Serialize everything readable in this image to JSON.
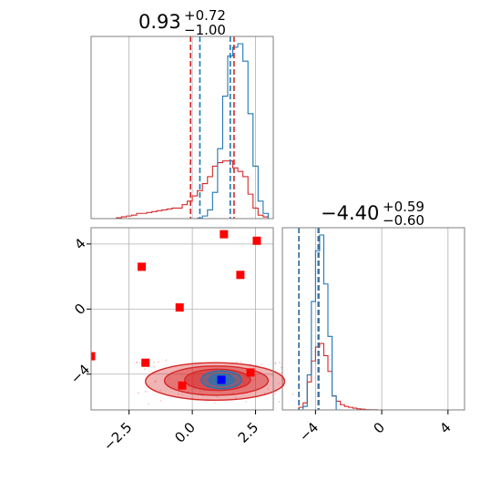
{
  "chart_data": {
    "type": "corner",
    "parameters": 2,
    "colors": {
      "series_a": "#1f77b4",
      "series_b": "#d62728",
      "truth_marker": "#0000ff",
      "sample_marker": "#ff0000"
    },
    "grid": true,
    "panels": [
      {
        "kind": "histogram",
        "position": "top-left",
        "title": {
          "value": "0.93",
          "upper": "+0.72",
          "lower": "−1.00"
        },
        "xlim": [
          -4.0,
          3.2
        ],
        "quantiles": {
          "series_a": [
            0.3,
            1.5
          ],
          "series_b": [
            -0.07,
            1.65
          ]
        },
        "bin_width": 0.2,
        "series_a_counts": [
          0,
          0,
          0,
          0,
          0,
          0,
          0,
          0,
          0,
          0,
          0,
          0,
          0,
          0,
          0,
          0,
          0,
          0,
          0,
          0,
          0,
          0.003,
          0.015,
          0.05,
          0.15,
          0.4,
          0.7,
          0.93,
          0.98,
          1.0,
          0.9,
          0.6,
          0.3,
          0.1,
          0.03,
          0
        ],
        "series_b_counts": [
          0,
          0,
          0,
          0,
          0,
          0.005,
          0.01,
          0.015,
          0.02,
          0.03,
          0.03,
          0.035,
          0.04,
          0.045,
          0.05,
          0.055,
          0.06,
          0.06,
          0.08,
          0.1,
          0.13,
          0.16,
          0.2,
          0.24,
          0.3,
          0.32,
          0.33,
          0.33,
          0.29,
          0.27,
          0.24,
          0.14,
          0.06,
          0.02,
          0.01,
          0
        ]
      },
      {
        "kind": "histogram",
        "position": "bottom-right",
        "title": {
          "value": "−4.40",
          "upper": "+0.59",
          "lower": "−0.60"
        },
        "xlim": [
          -6.0,
          5.0
        ],
        "ticks": [
          "−4",
          "0",
          "4"
        ],
        "tick_values": [
          -4,
          0,
          4
        ],
        "quantiles": {
          "series_a": [
            -5.0,
            -3.84
          ],
          "series_b": [
            -5.0,
            -3.8
          ]
        },
        "bin_width": 0.25,
        "series_a_counts": [
          0,
          0,
          0,
          0,
          0,
          0.02,
          0.2,
          0.62,
          0.91,
          1.0,
          0.72,
          0.42,
          0.08,
          0,
          0,
          0,
          0,
          0,
          0,
          0,
          0,
          0,
          0,
          0,
          0,
          0,
          0,
          0,
          0,
          0,
          0,
          0,
          0,
          0,
          0,
          0,
          0,
          0,
          0,
          0,
          0,
          0,
          0,
          0
        ],
        "series_b_counts": [
          0,
          0,
          0,
          0,
          0.015,
          0.04,
          0.16,
          0.28,
          0.36,
          0.38,
          0.31,
          0.22,
          0.08,
          0.05,
          0.03,
          0.02,
          0.015,
          0.01,
          0.006,
          0.004,
          0.002,
          0.001,
          0.001,
          0,
          0,
          0,
          0,
          0,
          0,
          0,
          0,
          0,
          0,
          0,
          0,
          0,
          0,
          0,
          0,
          0,
          0,
          0,
          0,
          0
        ]
      },
      {
        "kind": "scatter-contour",
        "position": "bottom-left",
        "xlim": [
          -4.0,
          3.2
        ],
        "ylim": [
          -6.2,
          5.0
        ],
        "xticks": [
          "−2.5",
          "0.0",
          "2.5"
        ],
        "xtick_values": [
          -2.5,
          0.0,
          2.5
        ],
        "yticks": [
          "−4",
          "0",
          "4"
        ],
        "ytick_values": [
          -4,
          0,
          4
        ],
        "sample_points": [
          [
            1.25,
            4.6
          ],
          [
            2.55,
            4.2
          ],
          [
            -2.0,
            2.6
          ],
          [
            1.9,
            2.1
          ],
          [
            -0.5,
            0.1
          ],
          [
            -4.0,
            -2.9
          ],
          [
            -1.85,
            -3.3
          ],
          [
            2.3,
            -3.9
          ],
          [
            -0.4,
            -4.7
          ]
        ],
        "truth_point": [
          1.15,
          -4.35
        ],
        "contours_series_b": [
          {
            "cx": 0.9,
            "cy": -4.45,
            "rx": 2.75,
            "ry": 1.15
          },
          {
            "cx": 0.95,
            "cy": -4.4,
            "rx": 2.05,
            "ry": 0.9
          },
          {
            "cx": 1.0,
            "cy": -4.35,
            "rx": 1.3,
            "ry": 0.65
          }
        ],
        "contours_series_a": [
          {
            "cx": 1.15,
            "cy": -4.35,
            "rx": 0.8,
            "ry": 0.55
          },
          {
            "cx": 1.15,
            "cy": -4.35,
            "rx": 0.5,
            "ry": 0.35
          },
          {
            "cx": 1.15,
            "cy": -4.35,
            "rx": 0.25,
            "ry": 0.18
          }
        ]
      }
    ]
  }
}
